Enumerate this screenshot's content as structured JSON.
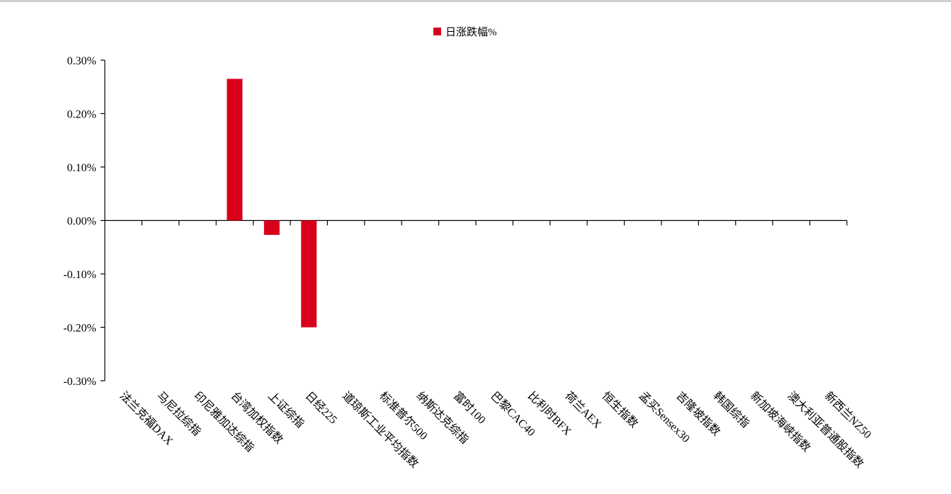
{
  "chart_data": {
    "type": "bar",
    "title": "",
    "xlabel": "",
    "ylabel": "",
    "ylim": [
      -0.3,
      0.3
    ],
    "yticks": [
      "0.30%",
      "0.20%",
      "0.10%",
      "0.00%",
      "-0.10%",
      "-0.20%",
      "-0.30%"
    ],
    "ytick_values": [
      0.3,
      0.2,
      0.1,
      0.0,
      -0.1,
      -0.2,
      -0.3
    ],
    "categories": [
      "法兰克福DAX",
      "马尼拉综指",
      "印尼雅加达综指",
      "台湾加权指数",
      "上证综指",
      "日经225",
      "道琼斯工业平均指数",
      "标准普尔500",
      "纳斯达克综指",
      "富时100",
      "巴黎CAC40",
      "比利时BFX",
      "荷兰AEX",
      "恒生指数",
      "孟买Sensex30",
      "吉隆坡指数",
      "韩国综指",
      "新加坡海峡指数",
      "澳大利亚普通股指数",
      "新西兰NZ50"
    ],
    "series": [
      {
        "name": "日涨跌幅%",
        "color": "#d9001b",
        "values": [
          0,
          0,
          0,
          0.265,
          -0.027,
          -0.2,
          0,
          0,
          0,
          0,
          0,
          0,
          0,
          0,
          0,
          0,
          0,
          0,
          0,
          0
        ]
      }
    ],
    "legend": "top-center",
    "grid": false
  }
}
